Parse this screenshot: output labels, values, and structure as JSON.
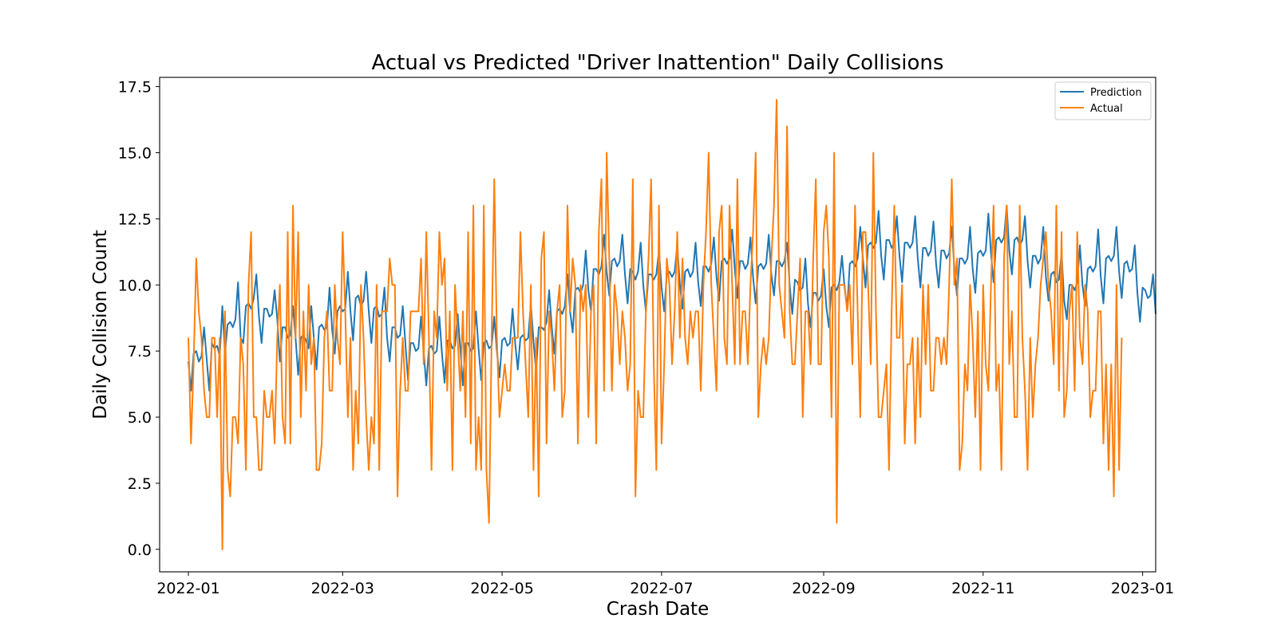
{
  "chart_data": {
    "type": "line",
    "title": "Actual vs Predicted \"Driver Inattention\" Daily Collisions",
    "xlabel": "Crash Date",
    "ylabel": "Daily Collision Count",
    "xlim": [
      "2021-12-21",
      "2023-01-06"
    ],
    "ylim": [
      -0.85,
      17.85
    ],
    "x_ticks": [
      "2022-01-01",
      "2022-03-01",
      "2022-05-01",
      "2022-07-01",
      "2022-09-01",
      "2022-11-01",
      "2023-01-01"
    ],
    "x_tick_labels": [
      "2022-01",
      "2022-03",
      "2022-05",
      "2022-07",
      "2022-09",
      "2022-11",
      "2023-01"
    ],
    "y_ticks": [
      0.0,
      2.5,
      5.0,
      7.5,
      10.0,
      12.5,
      15.0,
      17.5
    ],
    "y_tick_labels": [
      "0.0",
      "2.5",
      "5.0",
      "7.5",
      "10.0",
      "12.5",
      "15.0",
      "17.5"
    ],
    "grid": false,
    "legend_position": "top-right",
    "x_start": "2022-01-01",
    "x_end": "2022-12-31",
    "x_frequency": "daily",
    "series": [
      {
        "name": "Prediction",
        "color": "#1f77b4",
        "values": [
          7.1,
          6.0,
          7.4,
          7.5,
          7.1,
          7.3,
          8.4,
          7.2,
          6.0,
          7.8,
          7.6,
          7.7,
          7.3,
          9.2,
          7.4,
          8.5,
          8.6,
          8.4,
          8.7,
          10.1,
          8.0,
          7.8,
          9.2,
          9.3,
          9.1,
          9.5,
          10.4,
          8.8,
          7.8,
          9.1,
          9.1,
          8.8,
          8.9,
          9.8,
          8.7,
          7.1,
          8.4,
          8.4,
          8.0,
          8.1,
          9.2,
          8.0,
          6.6,
          8.0,
          8.1,
          7.9,
          7.6,
          9.2,
          8.0,
          6.8,
          8.4,
          8.5,
          8.3,
          8.4,
          9.9,
          8.3,
          7.4,
          9.0,
          9.2,
          9.0,
          9.1,
          10.5,
          9.0,
          7.9,
          9.5,
          9.6,
          9.2,
          9.4,
          10.5,
          9.0,
          7.8,
          9.1,
          9.2,
          8.8,
          8.9,
          9.9,
          8.0,
          7.1,
          8.4,
          8.4,
          8.0,
          8.1,
          9.2,
          7.8,
          6.4,
          7.8,
          7.8,
          7.5,
          7.6,
          8.8,
          7.5,
          6.2,
          7.6,
          7.7,
          7.4,
          7.5,
          8.8,
          7.4,
          6.3,
          7.9,
          7.9,
          7.6,
          7.7,
          8.9,
          7.6,
          6.2,
          7.8,
          7.8,
          7.5,
          7.6,
          9.0,
          7.6,
          6.4,
          7.8,
          7.9,
          7.6,
          7.7,
          8.8,
          7.5,
          6.5,
          7.9,
          8.0,
          7.7,
          7.8,
          9.1,
          7.8,
          6.8,
          8.0,
          8.1,
          7.9,
          8.0,
          9.3,
          7.9,
          6.7,
          8.4,
          8.4,
          8.3,
          8.6,
          9.8,
          8.4,
          7.4,
          9.0,
          9.1,
          8.9,
          9.2,
          10.4,
          9.0,
          8.2,
          9.8,
          9.9,
          9.7,
          10.0,
          11.3,
          9.8,
          9.0,
          10.6,
          10.6,
          10.4,
          10.7,
          11.9,
          10.5,
          9.6,
          10.9,
          11.0,
          10.7,
          10.9,
          11.9,
          10.4,
          9.3,
          10.6,
          10.5,
          10.2,
          10.5,
          11.6,
          10.0,
          9.0,
          10.4,
          10.4,
          10.2,
          10.4,
          11.3,
          9.9,
          9.0,
          10.4,
          10.5,
          10.3,
          10.5,
          11.5,
          10.0,
          9.1,
          10.5,
          10.6,
          10.3,
          10.5,
          11.6,
          10.1,
          9.2,
          10.7,
          10.7,
          10.5,
          10.8,
          11.8,
          10.3,
          9.4,
          10.9,
          11.0,
          10.8,
          11.0,
          12.1,
          10.6,
          9.5,
          10.9,
          10.9,
          10.6,
          10.8,
          11.8,
          10.3,
          9.3,
          10.7,
          10.8,
          10.6,
          10.8,
          11.9,
          10.4,
          9.6,
          10.9,
          10.9,
          10.7,
          10.9,
          11.6,
          10.0,
          8.9,
          10.2,
          10.1,
          9.8,
          9.9,
          11.0,
          9.3,
          8.4,
          9.7,
          9.7,
          9.4,
          9.6,
          10.6,
          9.2,
          8.4,
          9.9,
          10.0,
          9.8,
          10.1,
          11.1,
          9.9,
          9.1,
          10.8,
          10.9,
          10.7,
          11.0,
          12.2,
          11.0,
          9.9,
          11.5,
          11.6,
          11.4,
          11.6,
          12.8,
          11.1,
          10.2,
          11.7,
          11.7,
          11.4,
          11.6,
          12.6,
          11.1,
          10.1,
          11.6,
          11.6,
          11.4,
          11.6,
          12.6,
          11.0,
          9.9,
          11.4,
          11.4,
          11.1,
          11.3,
          12.4,
          10.8,
          9.9,
          11.3,
          11.3,
          11.0,
          11.2,
          12.2,
          10.6,
          9.6,
          11.0,
          11.0,
          10.8,
          11.0,
          12.2,
          10.6,
          9.7,
          11.2,
          11.3,
          11.1,
          11.3,
          12.7,
          11.2,
          10.1,
          11.7,
          11.8,
          11.6,
          11.8,
          13.0,
          11.3,
          10.4,
          11.7,
          11.8,
          11.5,
          11.7,
          12.6,
          10.9,
          9.9,
          11.1,
          11.1,
          10.8,
          11.0,
          12.2,
          10.3,
          9.4,
          10.4,
          10.5,
          10.1,
          10.2,
          11.2,
          9.4,
          8.7,
          10.0,
          10.0,
          9.8,
          10.1,
          11.5,
          10.0,
          9.2,
          10.6,
          10.7,
          10.5,
          10.7,
          12.1,
          10.3,
          9.3,
          11.0,
          11.1,
          10.9,
          11.1,
          12.2,
          10.5,
          9.5,
          10.8,
          10.9,
          10.5,
          10.6,
          11.5,
          9.7,
          8.6,
          9.9,
          9.8,
          9.5,
          9.6,
          10.4,
          8.9
        ]
      },
      {
        "name": "Actual",
        "color": "#ff7f0e",
        "values": [
          8,
          4,
          7,
          11,
          9,
          8,
          6,
          5,
          5,
          8,
          8,
          5,
          8,
          0,
          9,
          3,
          2,
          5,
          5,
          4,
          8,
          7,
          3,
          10,
          12,
          5,
          5,
          3,
          3,
          6,
          5,
          5,
          6,
          4,
          8,
          10,
          5,
          4,
          12,
          4,
          13,
          8,
          12,
          5,
          9,
          6,
          10,
          7,
          8,
          3,
          3,
          4,
          8,
          9,
          6,
          6,
          10,
          8,
          7,
          12,
          9,
          5,
          8,
          3,
          6,
          4,
          10,
          8,
          5,
          3,
          5,
          4,
          10,
          3,
          9,
          9,
          9,
          11,
          10,
          10,
          2,
          6,
          8,
          6,
          6,
          9,
          9,
          9,
          9,
          11,
          7,
          12,
          8,
          3,
          9,
          8,
          12,
          10,
          11,
          6,
          9,
          3,
          10,
          8,
          6,
          9,
          5,
          12,
          4,
          13,
          3,
          5,
          3,
          13,
          3,
          1,
          8,
          14,
          8,
          5,
          6,
          7,
          6,
          6,
          8,
          8,
          8,
          12,
          9,
          7,
          5,
          10,
          3,
          8,
          2,
          11,
          12,
          4,
          9,
          8,
          6,
          9,
          10,
          5,
          6,
          13,
          9,
          11,
          10,
          4,
          10,
          9,
          10,
          5,
          9,
          10,
          4,
          12,
          14,
          6,
          15,
          11,
          6,
          10,
          9,
          7,
          9,
          8,
          6,
          7,
          14,
          2,
          6,
          5,
          5,
          9,
          11,
          14,
          7,
          3,
          13,
          4,
          7,
          11,
          10,
          7,
          9,
          12,
          8,
          11,
          8,
          7,
          9,
          8,
          9,
          9,
          6,
          10,
          12,
          15,
          10,
          8,
          6,
          12,
          13,
          8,
          7,
          13,
          10,
          7,
          14,
          7,
          9,
          9,
          7,
          10,
          12,
          15,
          5,
          7,
          8,
          7,
          8,
          11,
          13,
          17,
          10,
          9,
          8,
          16,
          9,
          7,
          7,
          9,
          11,
          5,
          9,
          9,
          7,
          11,
          14,
          7,
          7,
          12,
          13,
          11,
          5,
          15,
          1,
          10,
          10,
          10,
          9,
          10,
          7,
          13,
          9,
          5,
          12,
          12,
          10,
          7,
          15,
          9,
          5,
          5,
          6,
          7,
          3,
          9,
          13,
          8,
          8,
          10,
          4,
          7,
          7,
          8,
          4,
          8,
          5,
          10,
          7,
          10,
          6,
          6,
          8,
          8,
          7,
          8,
          7,
          10,
          14,
          10,
          11,
          3,
          4,
          7,
          6,
          10,
          8,
          5,
          9,
          3,
          10,
          7,
          6,
          10,
          13,
          6,
          7,
          3,
          11,
          13,
          7,
          9,
          5,
          5,
          13,
          8,
          6,
          3,
          8,
          5,
          7,
          8,
          10,
          11,
          12,
          10,
          9,
          7,
          13,
          6,
          12,
          5,
          6,
          9,
          10,
          6,
          12,
          8,
          7,
          10,
          9,
          5,
          6,
          6,
          9,
          9,
          4,
          7,
          3,
          7,
          2,
          10,
          3,
          8
        ]
      }
    ]
  }
}
